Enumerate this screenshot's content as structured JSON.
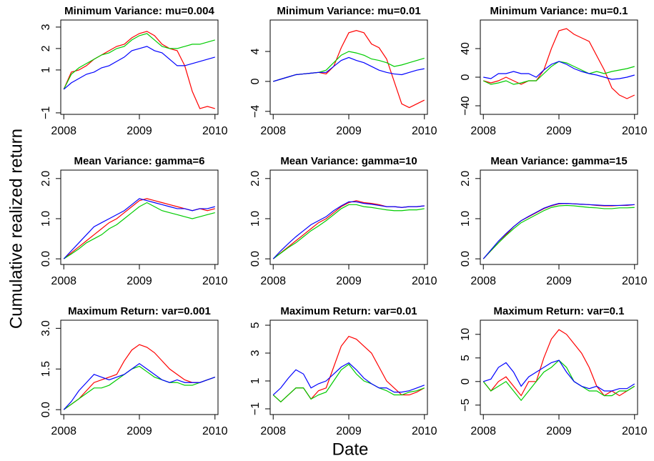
{
  "y_label": "Cumulative realized return",
  "x_label": "Date",
  "chart_data": [
    {
      "type": "line",
      "title": "Minimum Variance: mu=0.004",
      "x": [
        2008,
        2008.1,
        2008.2,
        2008.3,
        2008.4,
        2008.5,
        2008.6,
        2008.7,
        2008.8,
        2008.9,
        2009,
        2009.1,
        2009.2,
        2009.3,
        2009.4,
        2009.5,
        2009.6,
        2009.7,
        2009.8,
        2009.9,
        2010
      ],
      "xlim": [
        2007.96,
        2010.04
      ],
      "xticks": [
        2008,
        2009,
        2010
      ],
      "ylim": [
        -1.07,
        3.33
      ],
      "yticks": [
        {
          "value": -1,
          "label": "−1"
        },
        1,
        2,
        3
      ],
      "series": [
        {
          "color": "#ff0000",
          "values": [
            0.1,
            0.9,
            1.0,
            1.2,
            1.5,
            1.7,
            1.9,
            2.1,
            2.2,
            2.5,
            2.7,
            2.8,
            2.6,
            2.2,
            2.0,
            1.9,
            1.2,
            0.0,
            -0.8,
            -0.7,
            -0.8
          ]
        },
        {
          "color": "#00cc00",
          "values": [
            0.1,
            0.8,
            1.1,
            1.3,
            1.5,
            1.7,
            1.8,
            2.0,
            2.1,
            2.4,
            2.6,
            2.7,
            2.4,
            2.1,
            2.0,
            2.0,
            2.1,
            2.2,
            2.2,
            2.3,
            2.4
          ]
        },
        {
          "color": "#0000ff",
          "values": [
            0.1,
            0.4,
            0.6,
            0.8,
            0.9,
            1.1,
            1.2,
            1.4,
            1.6,
            1.9,
            2.0,
            2.1,
            1.9,
            1.8,
            1.5,
            1.2,
            1.2,
            1.3,
            1.4,
            1.5,
            1.6
          ]
        }
      ]
    },
    {
      "type": "line",
      "title": "Minimum Variance: mu=0.01",
      "x": [
        2008,
        2008.1,
        2008.2,
        2008.3,
        2008.4,
        2008.5,
        2008.6,
        2008.7,
        2008.8,
        2008.9,
        2009,
        2009.1,
        2009.2,
        2009.3,
        2009.4,
        2009.5,
        2009.6,
        2009.7,
        2009.8,
        2009.9,
        2010
      ],
      "xlim": [
        2007.96,
        2010.04
      ],
      "xticks": [
        2008,
        2009,
        2010
      ],
      "ylim": [
        -4.4,
        8.2
      ],
      "yticks": [
        {
          "value": -4,
          "label": "−4"
        },
        0,
        4
      ],
      "series": [
        {
          "color": "#ff0000",
          "values": [
            0,
            0.3,
            0.6,
            0.9,
            1.0,
            1.1,
            1.2,
            1.0,
            2.0,
            4.5,
            6.5,
            6.8,
            6.5,
            5.0,
            4.5,
            3.0,
            0,
            -3.0,
            -3.5,
            -3.0,
            -2.5
          ]
        },
        {
          "color": "#00cc00",
          "values": [
            0,
            0.3,
            0.6,
            0.9,
            1.0,
            1.1,
            1.2,
            1.5,
            2.5,
            3.5,
            4.0,
            3.8,
            3.5,
            3.0,
            2.8,
            2.5,
            2.0,
            2.2,
            2.5,
            2.8,
            3.1
          ]
        },
        {
          "color": "#0000ff",
          "values": [
            0,
            0.3,
            0.6,
            0.9,
            1.0,
            1.1,
            1.2,
            1.2,
            2.0,
            2.8,
            3.2,
            2.8,
            2.5,
            2.0,
            1.5,
            1.2,
            1.0,
            0.9,
            1.2,
            1.5,
            1.7
          ]
        }
      ]
    },
    {
      "type": "line",
      "title": "Minimum Variance: mu=0.1",
      "x": [
        2008,
        2008.1,
        2008.2,
        2008.3,
        2008.4,
        2008.5,
        2008.6,
        2008.7,
        2008.8,
        2008.9,
        2009,
        2009.1,
        2009.2,
        2009.3,
        2009.4,
        2009.5,
        2009.6,
        2009.7,
        2009.8,
        2009.9,
        2010
      ],
      "xlim": [
        2007.96,
        2010.04
      ],
      "xticks": [
        2008,
        2009,
        2010
      ],
      "ylim": [
        -52,
        80
      ],
      "yticks": [
        {
          "value": -40,
          "label": "−40"
        },
        0,
        40
      ],
      "series": [
        {
          "color": "#ff0000",
          "values": [
            -5,
            -8,
            -5,
            0,
            -5,
            -10,
            -5,
            -5,
            10,
            40,
            65,
            68,
            60,
            55,
            50,
            30,
            10,
            -15,
            -25,
            -30,
            -25
          ]
        },
        {
          "color": "#00cc00",
          "values": [
            -5,
            -10,
            -8,
            -5,
            -10,
            -8,
            -5,
            -5,
            5,
            15,
            22,
            20,
            15,
            10,
            5,
            8,
            5,
            8,
            10,
            12,
            15
          ]
        },
        {
          "color": "#0000ff",
          "values": [
            0,
            -2,
            5,
            5,
            8,
            5,
            5,
            0,
            10,
            18,
            22,
            18,
            12,
            8,
            5,
            3,
            0,
            -3,
            -2,
            0,
            3
          ]
        }
      ]
    },
    {
      "type": "line",
      "title": "Mean Variance: gamma=6",
      "x": [
        2008,
        2008.1,
        2008.2,
        2008.3,
        2008.4,
        2008.5,
        2008.6,
        2008.7,
        2008.8,
        2008.9,
        2009,
        2009.1,
        2009.2,
        2009.3,
        2009.4,
        2009.5,
        2009.6,
        2009.7,
        2009.8,
        2009.9,
        2010
      ],
      "xlim": [
        2007.96,
        2010.04
      ],
      "xticks": [
        2008,
        2009,
        2010
      ],
      "ylim": [
        -0.14,
        2.21
      ],
      "yticks": [
        {
          "value": 0,
          "label": "0.0"
        },
        {
          "value": 1,
          "label": "1.0"
        },
        {
          "value": 2,
          "label": "2.0"
        }
      ],
      "series": [
        {
          "color": "#ff0000",
          "values": [
            0,
            0.15,
            0.3,
            0.45,
            0.6,
            0.75,
            0.9,
            1.0,
            1.15,
            1.3,
            1.45,
            1.5,
            1.45,
            1.4,
            1.35,
            1.3,
            1.25,
            1.2,
            1.25,
            1.2,
            1.25
          ]
        },
        {
          "color": "#00cc00",
          "values": [
            0,
            0.12,
            0.25,
            0.4,
            0.5,
            0.6,
            0.75,
            0.85,
            1.0,
            1.15,
            1.3,
            1.4,
            1.3,
            1.2,
            1.15,
            1.1,
            1.05,
            1.0,
            1.05,
            1.1,
            1.15
          ]
        },
        {
          "color": "#0000ff",
          "values": [
            0,
            0.2,
            0.4,
            0.6,
            0.8,
            0.9,
            1.0,
            1.1,
            1.2,
            1.35,
            1.5,
            1.45,
            1.4,
            1.35,
            1.3,
            1.25,
            1.25,
            1.2,
            1.25,
            1.25,
            1.3
          ]
        }
      ]
    },
    {
      "type": "line",
      "title": "Mean Variance: gamma=10",
      "x": [
        2008,
        2008.1,
        2008.2,
        2008.3,
        2008.4,
        2008.5,
        2008.6,
        2008.7,
        2008.8,
        2008.9,
        2009,
        2009.1,
        2009.2,
        2009.3,
        2009.4,
        2009.5,
        2009.6,
        2009.7,
        2009.8,
        2009.9,
        2010
      ],
      "xlim": [
        2007.96,
        2010.04
      ],
      "xticks": [
        2008,
        2009,
        2010
      ],
      "ylim": [
        -0.14,
        2.21
      ],
      "yticks": [
        {
          "value": 0,
          "label": "0.0"
        },
        {
          "value": 1,
          "label": "1.0"
        },
        {
          "value": 2,
          "label": "2.0"
        }
      ],
      "series": [
        {
          "color": "#ff0000",
          "values": [
            0,
            0.15,
            0.3,
            0.45,
            0.6,
            0.75,
            0.9,
            1.0,
            1.15,
            1.3,
            1.4,
            1.45,
            1.4,
            1.38,
            1.35,
            1.3,
            1.3,
            1.28,
            1.3,
            1.3,
            1.32
          ]
        },
        {
          "color": "#00cc00",
          "values": [
            0,
            0.14,
            0.28,
            0.4,
            0.55,
            0.7,
            0.82,
            0.95,
            1.1,
            1.25,
            1.35,
            1.35,
            1.3,
            1.28,
            1.25,
            1.22,
            1.2,
            1.2,
            1.22,
            1.22,
            1.25
          ]
        },
        {
          "color": "#0000ff",
          "values": [
            0,
            0.2,
            0.38,
            0.55,
            0.7,
            0.85,
            0.95,
            1.05,
            1.2,
            1.32,
            1.42,
            1.42,
            1.38,
            1.36,
            1.33,
            1.3,
            1.3,
            1.28,
            1.3,
            1.3,
            1.32
          ]
        }
      ]
    },
    {
      "type": "line",
      "title": "Mean Variance: gamma=15",
      "x": [
        2008,
        2008.1,
        2008.2,
        2008.3,
        2008.4,
        2008.5,
        2008.6,
        2008.7,
        2008.8,
        2008.9,
        2009,
        2009.1,
        2009.2,
        2009.3,
        2009.4,
        2009.5,
        2009.6,
        2009.7,
        2009.8,
        2009.9,
        2010
      ],
      "xlim": [
        2007.96,
        2010.04
      ],
      "xticks": [
        2008,
        2009,
        2010
      ],
      "ylim": [
        -0.14,
        2.21
      ],
      "yticks": [
        {
          "value": 0,
          "label": "0.0"
        },
        {
          "value": 1,
          "label": "1.0"
        },
        {
          "value": 2,
          "label": "2.0"
        }
      ],
      "series": [
        {
          "color": "#ff0000",
          "values": [
            0,
            0.2,
            0.4,
            0.6,
            0.8,
            0.95,
            1.05,
            1.15,
            1.25,
            1.32,
            1.37,
            1.38,
            1.37,
            1.36,
            1.35,
            1.33,
            1.32,
            1.32,
            1.33,
            1.33,
            1.35
          ]
        },
        {
          "color": "#00cc00",
          "values": [
            0,
            0.2,
            0.4,
            0.58,
            0.75,
            0.9,
            1.0,
            1.1,
            1.2,
            1.28,
            1.32,
            1.33,
            1.32,
            1.3,
            1.28,
            1.27,
            1.25,
            1.25,
            1.27,
            1.27,
            1.28
          ]
        },
        {
          "color": "#0000ff",
          "values": [
            0,
            0.22,
            0.44,
            0.63,
            0.8,
            0.95,
            1.06,
            1.16,
            1.26,
            1.33,
            1.38,
            1.38,
            1.37,
            1.36,
            1.35,
            1.34,
            1.33,
            1.33,
            1.33,
            1.34,
            1.35
          ]
        }
      ]
    },
    {
      "type": "line",
      "title": "Maximum Return: var=0.001",
      "x": [
        2008,
        2008.1,
        2008.2,
        2008.3,
        2008.4,
        2008.5,
        2008.6,
        2008.7,
        2008.8,
        2008.9,
        2009,
        2009.1,
        2009.2,
        2009.3,
        2009.4,
        2009.5,
        2009.6,
        2009.7,
        2009.8,
        2009.9,
        2010
      ],
      "xlim": [
        2007.96,
        2010.04
      ],
      "xticks": [
        2008,
        2009,
        2010
      ],
      "ylim": [
        -0.18,
        3.3
      ],
      "yticks": [
        {
          "value": 0,
          "label": "0.0"
        },
        1.5,
        {
          "value": 3,
          "label": "3.0"
        }
      ],
      "series": [
        {
          "color": "#ff0000",
          "values": [
            0,
            0.2,
            0.4,
            0.7,
            1.0,
            1.1,
            1.2,
            1.3,
            1.8,
            2.2,
            2.4,
            2.3,
            2.1,
            1.8,
            1.5,
            1.3,
            1.1,
            1.0,
            1.0,
            1.1,
            1.2
          ]
        },
        {
          "color": "#00cc00",
          "values": [
            0,
            0.2,
            0.4,
            0.6,
            0.8,
            0.8,
            0.9,
            1.1,
            1.3,
            1.5,
            1.6,
            1.4,
            1.2,
            1.1,
            1.0,
            1.0,
            0.9,
            0.9,
            1.0,
            1.1,
            1.2
          ]
        },
        {
          "color": "#0000ff",
          "values": [
            0,
            0.3,
            0.7,
            1.0,
            1.3,
            1.2,
            1.1,
            1.2,
            1.3,
            1.5,
            1.7,
            1.5,
            1.3,
            1.1,
            1.0,
            1.1,
            1.0,
            1.0,
            1.0,
            1.1,
            1.2
          ]
        }
      ]
    },
    {
      "type": "line",
      "title": "Maximum Return: var=0.01",
      "x": [
        2008,
        2008.1,
        2008.2,
        2008.3,
        2008.4,
        2008.5,
        2008.6,
        2008.7,
        2008.8,
        2008.9,
        2009,
        2009.1,
        2009.2,
        2009.3,
        2009.4,
        2009.5,
        2009.6,
        2009.7,
        2009.8,
        2009.9,
        2010
      ],
      "xlim": [
        2007.96,
        2010.04
      ],
      "xticks": [
        2008,
        2009,
        2010
      ],
      "ylim": [
        -1.41,
        5.36
      ],
      "yticks": [
        {
          "value": -1,
          "label": "−1"
        },
        1,
        3,
        5
      ],
      "series": [
        {
          "color": "#ff0000",
          "values": [
            0,
            -0.5,
            0,
            0.5,
            0.5,
            -0.3,
            0.3,
            0.5,
            2.0,
            3.5,
            4.2,
            4.0,
            3.5,
            3.0,
            2.0,
            1.0,
            0.5,
            0,
            0,
            0.2,
            0.5
          ]
        },
        {
          "color": "#00cc00",
          "values": [
            0,
            -0.5,
            0,
            0.5,
            0.5,
            -0.3,
            0,
            0.2,
            1.0,
            1.8,
            2.2,
            1.5,
            1.0,
            0.8,
            0.5,
            0.3,
            0,
            0,
            0.2,
            0.3,
            0.5
          ]
        },
        {
          "color": "#0000ff",
          "values": [
            0,
            0.5,
            1.2,
            1.8,
            1.5,
            0.5,
            0.8,
            1.0,
            1.5,
            2.0,
            2.3,
            1.8,
            1.2,
            0.8,
            0.5,
            0.5,
            0.2,
            0.2,
            0.3,
            0.5,
            0.7
          ]
        }
      ]
    },
    {
      "type": "line",
      "title": "Maximum Return: var=0.1",
      "x": [
        2008,
        2008.1,
        2008.2,
        2008.3,
        2008.4,
        2008.5,
        2008.6,
        2008.7,
        2008.8,
        2008.9,
        2009,
        2009.1,
        2009.2,
        2009.3,
        2009.4,
        2009.5,
        2009.6,
        2009.7,
        2009.8,
        2009.9,
        2010
      ],
      "xlim": [
        2007.96,
        2010.04
      ],
      "xticks": [
        2008,
        2009,
        2010
      ],
      "ylim": [
        -7,
        13
      ],
      "yticks": [
        {
          "value": -5,
          "label": "−5"
        },
        0,
        5,
        10
      ],
      "series": [
        {
          "color": "#ff0000",
          "values": [
            0,
            -2,
            0,
            1,
            -1,
            -3,
            0,
            0,
            5,
            9,
            11,
            10,
            8,
            6,
            3,
            -1,
            -3,
            -2,
            -3,
            -2,
            -1
          ]
        },
        {
          "color": "#00cc00",
          "values": [
            0,
            -2,
            -1,
            0,
            -2,
            -4,
            -2,
            0,
            2,
            3,
            4.5,
            3,
            0,
            -1,
            -2,
            -2,
            -3,
            -3,
            -2,
            -2,
            -1
          ]
        },
        {
          "color": "#0000ff",
          "values": [
            0,
            0.5,
            3,
            4,
            2,
            -1,
            1,
            2,
            3,
            4,
            4.5,
            2,
            0,
            -1,
            -1.5,
            -1,
            -2,
            -2,
            -1.5,
            -1.5,
            -0.5
          ]
        }
      ]
    }
  ]
}
